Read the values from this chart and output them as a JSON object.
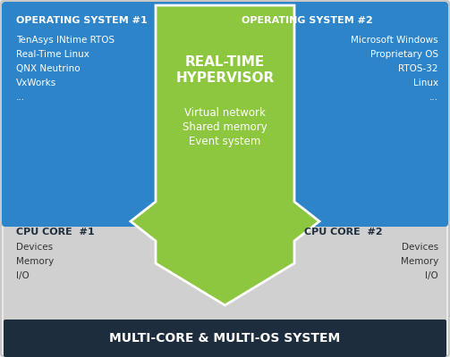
{
  "fig_width": 5.03,
  "fig_height": 4.0,
  "dpi": 100,
  "bg_color": "#e8e8e8",
  "blue_color": "#2d84c8",
  "green_color": "#8dc63f",
  "gray_color": "#d0d0d0",
  "dark_bar_color": "#1e2d3d",
  "white": "#ffffff",
  "dark_text": "#1e2d3d",
  "gray_text": "#333333",
  "os1_title": "OPERATING SYSTEM #1",
  "os1_items": [
    "TenAsys INtime RTOS",
    "Real-Time Linux",
    "QNX Neutrino",
    "VxWorks",
    "..."
  ],
  "os2_title": "OPERATING SYSTEM #2",
  "os2_items": [
    "Microsoft Windows",
    "Proprietary OS",
    "RTOS-32",
    "Linux",
    "..."
  ],
  "cpu1_title": "CPU CORE  #1",
  "cpu1_items": [
    "Devices",
    "Memory",
    "I/O"
  ],
  "cpu2_title": "CPU CORE  #2",
  "cpu2_items": [
    "Devices",
    "Memory",
    "I/O"
  ],
  "hypervisor_line1": "REAL-TIME",
  "hypervisor_line2": "HYPERVISOR",
  "hypervisor_items": [
    "Virtual network",
    "Shared memory",
    "Event system"
  ],
  "bottom_bar_text": "MULTI-CORE & MULTI-OS SYSTEM"
}
